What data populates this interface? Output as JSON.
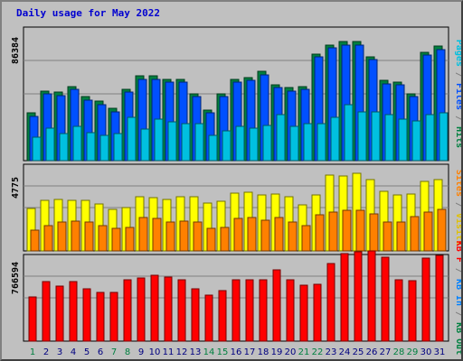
{
  "title": "Daily usage for May 2022",
  "colors": {
    "pages": "#00c0e0",
    "files": "#0050ff",
    "hits": "#008040",
    "visits": "#ffff00",
    "sites": "#ff8000",
    "kbin": "#ff0000",
    "kbout": "#0080ff",
    "weekend_label": "#008040",
    "weekday_label": "#000080"
  },
  "chart_data": [
    {
      "type": "bar",
      "panel": "hits-files-pages",
      "ymax_label": "86384",
      "ymax": 86384,
      "right_legend": [
        {
          "text": "Pages",
          "color": "#00c0e0"
        },
        {
          "text": " / ",
          "color": "#808080"
        },
        {
          "text": "Files",
          "color": "#0050ff"
        },
        {
          "text": " / ",
          "color": "#808080"
        },
        {
          "text": "Hits",
          "color": "#008040"
        }
      ],
      "categories": [
        "1",
        "2",
        "3",
        "4",
        "5",
        "6",
        "7",
        "8",
        "9",
        "10",
        "11",
        "12",
        "13",
        "14",
        "15",
        "16",
        "17",
        "18",
        "19",
        "20",
        "21",
        "22",
        "23",
        "24",
        "25",
        "26",
        "27",
        "28",
        "29",
        "30",
        "31"
      ],
      "series": [
        {
          "name": "Hits",
          "values": [
            32000,
            47000,
            46000,
            50000,
            43000,
            40000,
            35000,
            48000,
            57000,
            57000,
            55000,
            55000,
            45000,
            34000,
            45000,
            55000,
            56000,
            60000,
            51000,
            49000,
            50000,
            72000,
            78000,
            80000,
            80000,
            70000,
            54000,
            53000,
            45000,
            73000,
            77000
          ]
        },
        {
          "name": "Files",
          "values": [
            30000,
            45000,
            44000,
            48000,
            41000,
            38000,
            33000,
            46000,
            55000,
            55000,
            53000,
            53000,
            43000,
            32000,
            43000,
            53000,
            54000,
            58000,
            49000,
            47000,
            48000,
            70000,
            76000,
            78000,
            78000,
            68000,
            52000,
            51000,
            43000,
            71000,
            75000
          ]
        },
        {
          "name": "Pages",
          "values": [
            16000,
            22000,
            18000,
            23000,
            19000,
            17000,
            18000,
            29000,
            21000,
            28000,
            26000,
            25000,
            25000,
            17000,
            20000,
            23000,
            22000,
            24000,
            31000,
            23000,
            25000,
            25000,
            29000,
            38000,
            33000,
            33000,
            31000,
            28000,
            27000,
            31000,
            32000
          ]
        }
      ]
    },
    {
      "type": "bar",
      "panel": "visits-sites",
      "ymax_label": "4775",
      "ymax": 4775,
      "right_legend": [
        {
          "text": "Sites",
          "color": "#ff8000"
        },
        {
          "text": " / ",
          "color": "#808080"
        },
        {
          "text": "Visits",
          "color": "#e0c000"
        }
      ],
      "categories": [
        "1",
        "2",
        "3",
        "4",
        "5",
        "6",
        "7",
        "8",
        "9",
        "10",
        "11",
        "12",
        "13",
        "14",
        "15",
        "16",
        "17",
        "18",
        "19",
        "20",
        "21",
        "22",
        "23",
        "24",
        "25",
        "26",
        "27",
        "28",
        "29",
        "30",
        "31"
      ],
      "series": [
        {
          "name": "Visits",
          "values": [
            2500,
            2950,
            3000,
            2950,
            2950,
            2750,
            2450,
            2550,
            3200,
            3150,
            3000,
            3200,
            3200,
            2800,
            2900,
            3400,
            3450,
            3300,
            3350,
            3200,
            2700,
            3300,
            4450,
            4400,
            4550,
            4200,
            3500,
            3300,
            3350,
            4100,
            4200
          ]
        },
        {
          "name": "Sites",
          "values": [
            1200,
            1500,
            1700,
            1750,
            1700,
            1500,
            1300,
            1400,
            1950,
            1900,
            1700,
            1750,
            1700,
            1300,
            1400,
            1900,
            1950,
            1800,
            1950,
            1700,
            1500,
            2100,
            2300,
            2400,
            2400,
            2200,
            1700,
            1700,
            2000,
            2300,
            2450
          ]
        }
      ]
    },
    {
      "type": "bar",
      "panel": "kbytes",
      "ymax_label": "766594",
      "ymax": 766594,
      "right_legend": [
        {
          "text": "KB F",
          "color": "#ff0000"
        },
        {
          "text": " / ",
          "color": "#808080"
        },
        {
          "text": "KB In",
          "color": "#0080ff"
        },
        {
          "text": " / ",
          "color": "#808080"
        },
        {
          "text": "KB Out",
          "color": "#008040"
        }
      ],
      "categories": [
        "1",
        "2",
        "3",
        "4",
        "5",
        "6",
        "7",
        "8",
        "9",
        "10",
        "11",
        "12",
        "13",
        "14",
        "15",
        "16",
        "17",
        "18",
        "19",
        "20",
        "21",
        "22",
        "23",
        "24",
        "25",
        "26",
        "27",
        "28",
        "29",
        "30",
        "31"
      ],
      "series": [
        {
          "name": "KB F",
          "values": [
            420000,
            560000,
            520000,
            565000,
            490000,
            460000,
            460000,
            575000,
            600000,
            625000,
            605000,
            580000,
            495000,
            435000,
            480000,
            580000,
            575000,
            580000,
            675000,
            575000,
            525000,
            535000,
            730000,
            830000,
            840000,
            855000,
            795000,
            575000,
            570000,
            785000,
            810000
          ]
        }
      ]
    }
  ],
  "weekends": [
    1,
    7,
    8,
    14,
    15,
    21,
    22,
    28,
    29
  ]
}
